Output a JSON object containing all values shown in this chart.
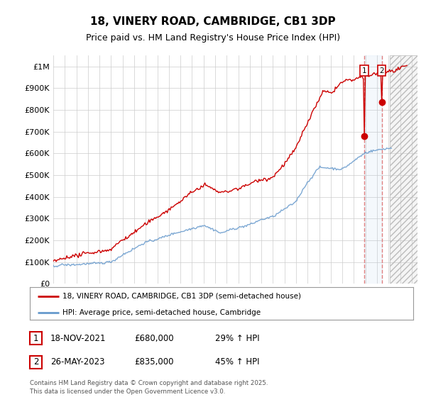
{
  "title": "18, VINERY ROAD, CAMBRIDGE, CB1 3DP",
  "subtitle": "Price paid vs. HM Land Registry's House Price Index (HPI)",
  "ylim": [
    0,
    1050000
  ],
  "yticks": [
    0,
    100000,
    200000,
    300000,
    400000,
    500000,
    600000,
    700000,
    800000,
    900000,
    1000000
  ],
  "ytick_labels": [
    "£0",
    "£100K",
    "£200K",
    "£300K",
    "£400K",
    "£500K",
    "£600K",
    "£700K",
    "£800K",
    "£900K",
    "£1M"
  ],
  "xlim_start": 1995.0,
  "xlim_end": 2026.5,
  "hatch_start": 2024.08,
  "sale1_date": 2021.88,
  "sale1_price": 680000,
  "sale1_label": "1",
  "sale2_date": 2023.4,
  "sale2_price": 835000,
  "sale2_label": "2",
  "red_line_color": "#cc0000",
  "blue_line_color": "#6699cc",
  "dashed_line_color": "#e08080",
  "legend_label_red": "18, VINERY ROAD, CAMBRIDGE, CB1 3DP (semi-detached house)",
  "legend_label_blue": "HPI: Average price, semi-detached house, Cambridge",
  "annotation1_date": "18-NOV-2021",
  "annotation1_price": "£680,000",
  "annotation1_hpi": "29% ↑ HPI",
  "annotation2_date": "26-MAY-2023",
  "annotation2_price": "£835,000",
  "annotation2_hpi": "45% ↑ HPI",
  "footer": "Contains HM Land Registry data © Crown copyright and database right 2025.\nThis data is licensed under the Open Government Licence v3.0.",
  "background_color": "#ffffff"
}
